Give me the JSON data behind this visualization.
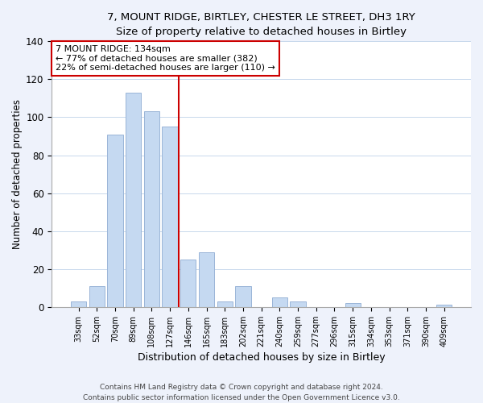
{
  "title": "7, MOUNT RIDGE, BIRTLEY, CHESTER LE STREET, DH3 1RY",
  "subtitle": "Size of property relative to detached houses in Birtley",
  "xlabel": "Distribution of detached houses by size in Birtley",
  "ylabel": "Number of detached properties",
  "bar_labels": [
    "33sqm",
    "52sqm",
    "70sqm",
    "89sqm",
    "108sqm",
    "127sqm",
    "146sqm",
    "165sqm",
    "183sqm",
    "202sqm",
    "221sqm",
    "240sqm",
    "259sqm",
    "277sqm",
    "296sqm",
    "315sqm",
    "334sqm",
    "353sqm",
    "371sqm",
    "390sqm",
    "409sqm"
  ],
  "bar_values": [
    3,
    11,
    91,
    113,
    103,
    95,
    25,
    29,
    3,
    11,
    0,
    5,
    3,
    0,
    0,
    2,
    0,
    0,
    0,
    0,
    1
  ],
  "bar_color": "#c5d9f1",
  "bar_edge_color": "#9ab5d8",
  "vline_x": 5.5,
  "vline_color": "#cc0000",
  "ylim": [
    0,
    140
  ],
  "yticks": [
    0,
    20,
    40,
    60,
    80,
    100,
    120,
    140
  ],
  "annotation_title": "7 MOUNT RIDGE: 134sqm",
  "annotation_line1": "← 77% of detached houses are smaller (382)",
  "annotation_line2": "22% of semi-detached houses are larger (110) →",
  "annotation_box_color": "#ffffff",
  "annotation_box_edge": "#cc0000",
  "footer1": "Contains HM Land Registry data © Crown copyright and database right 2024.",
  "footer2": "Contains public sector information licensed under the Open Government Licence v3.0.",
  "bg_color": "#eef2fb",
  "plot_bg_color": "#ffffff"
}
